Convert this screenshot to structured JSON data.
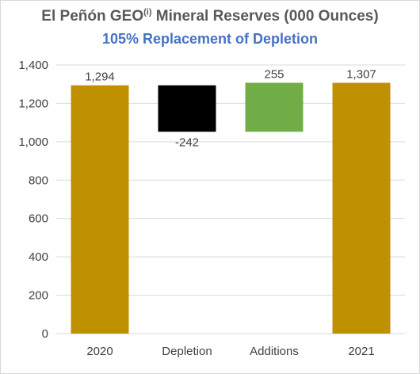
{
  "title": {
    "main": "El Peñón GEO",
    "sup": "(i)",
    "rest": " Mineral Reserves (000 Ounces)"
  },
  "subtitle": "105% Replacement of Depletion",
  "colors": {
    "gold": "#bf9000",
    "depletion": "#000000",
    "additions": "#70ad47",
    "grid": "#d9d9d9",
    "axis_text": "#404040",
    "title": "#595959",
    "subtitle": "#4472c4"
  },
  "chart_data": {
    "type": "bar",
    "variant": "waterfall",
    "categories": [
      "2020",
      "Depletion",
      "Additions",
      "2021"
    ],
    "values": [
      1294,
      -242,
      255,
      1307
    ],
    "bar_ranges": [
      [
        0,
        1294
      ],
      [
        1052,
        1294
      ],
      [
        1052,
        1307
      ],
      [
        0,
        1307
      ]
    ],
    "data_labels": [
      "1,294",
      "-242",
      "255",
      "1,307"
    ],
    "bar_colors": [
      "#bf9000",
      "#000000",
      "#70ad47",
      "#bf9000"
    ],
    "ylim": [
      0,
      1400
    ],
    "yticks": [
      0,
      200,
      400,
      600,
      800,
      1000,
      1200,
      1400
    ],
    "ytick_labels": [
      "0",
      "200",
      "400",
      "600",
      "800",
      "1,000",
      "1,200",
      "1,400"
    ],
    "xlabel": "",
    "ylabel": "",
    "grid": true,
    "legend": "none"
  }
}
